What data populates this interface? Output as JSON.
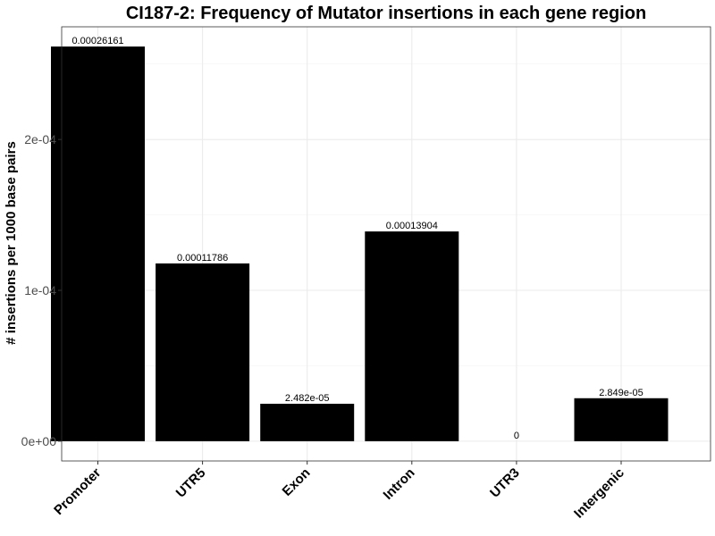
{
  "chart_data": {
    "type": "bar",
    "title": "CI187-2: Frequency of Mutator insertions in each gene region",
    "xlabel": "",
    "ylabel": "# insertions per 1000 base pairs",
    "categories": [
      "Promoter",
      "UTR5",
      "Exon",
      "Intron",
      "UTR3",
      "Intergenic"
    ],
    "values": [
      0.00026161,
      0.00011786,
      2.482e-05,
      0.00013904,
      0,
      2.849e-05
    ],
    "data_labels": [
      "0.00026161",
      "0.00011786",
      "2.482e-05",
      "0.00013904",
      "0",
      "2.849e-05"
    ],
    "ylim": [
      -1.31e-05,
      0.0002747
    ],
    "yticks": [
      0,
      0.0001,
      0.0002
    ],
    "ytick_labels": [
      "0e+00",
      "1e-04",
      "2e-04"
    ],
    "grid": true,
    "bar_color": "#000000"
  }
}
